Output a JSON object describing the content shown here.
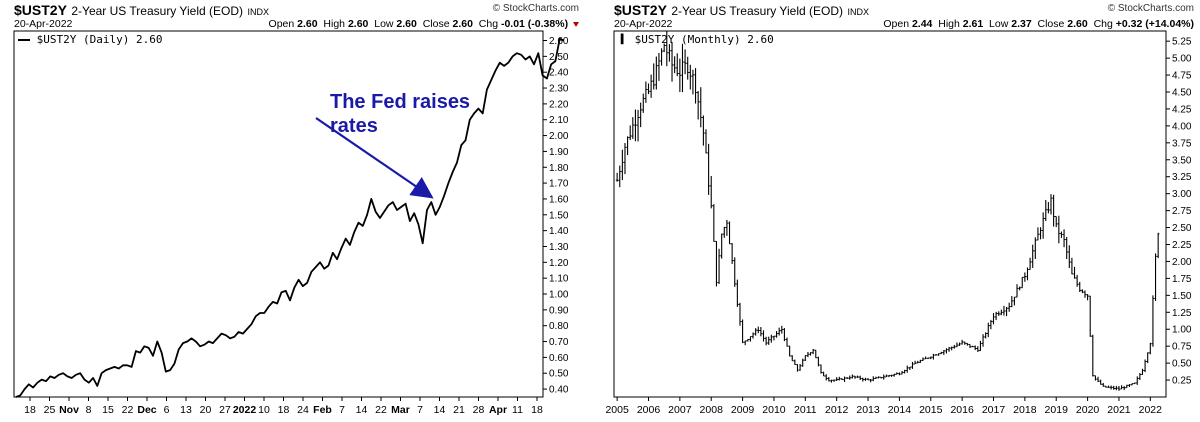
{
  "left": {
    "symbol": "$UST2Y",
    "description": "2-Year US Treasury Yield (EOD)",
    "exchange": "INDX",
    "brand": "© StockCharts.com",
    "date": "20-Apr-2022",
    "ohlc": {
      "open_label": "Open",
      "open": "2.60",
      "high_label": "High",
      "high": "2.60",
      "low_label": "Low",
      "low": "2.60",
      "close_label": "Close",
      "close": "2.60",
      "chg_label": "Chg",
      "chg": "-0.01 (-0.38%)"
    },
    "legend": "$UST2Y (Daily) 2.60",
    "annotation": "The Fed raises rates"
  },
  "right": {
    "symbol": "$UST2Y",
    "description": "2-Year US Treasury Yield (EOD)",
    "exchange": "INDX",
    "brand": "© StockCharts.com",
    "date": "20-Apr-2022",
    "ohlc": {
      "open_label": "Open",
      "open": "2.44",
      "high_label": "High",
      "high": "2.61",
      "low_label": "Low",
      "low": "2.37",
      "close_label": "Close",
      "close": "2.60",
      "chg_label": "Chg",
      "chg": "+0.32 (+14.04%)"
    },
    "legend": "$UST2Y (Monthly) 2.60"
  },
  "chart_data": [
    {
      "type": "line",
      "series": [
        {
          "name": "$UST2Y (Daily)",
          "values": [
            0.35,
            0.36,
            0.4,
            0.43,
            0.41,
            0.44,
            0.46,
            0.45,
            0.48,
            0.47,
            0.49,
            0.5,
            0.48,
            0.47,
            0.49,
            0.5,
            0.46,
            0.44,
            0.47,
            0.42,
            0.5,
            0.52,
            0.53,
            0.54,
            0.53,
            0.55,
            0.55,
            0.54,
            0.64,
            0.63,
            0.67,
            0.66,
            0.61,
            0.7,
            0.63,
            0.51,
            0.52,
            0.56,
            0.65,
            0.69,
            0.7,
            0.72,
            0.7,
            0.67,
            0.68,
            0.7,
            0.69,
            0.72,
            0.75,
            0.74,
            0.72,
            0.73,
            0.76,
            0.75,
            0.78,
            0.81,
            0.86,
            0.88,
            0.88,
            0.92,
            0.95,
            0.94,
            1.01,
            1.02,
            0.96,
            1.04,
            1.09,
            1.05,
            1.07,
            1.14,
            1.17,
            1.2,
            1.16,
            1.18,
            1.26,
            1.22,
            1.29,
            1.35,
            1.31,
            1.39,
            1.45,
            1.43,
            1.5,
            1.6,
            1.52,
            1.48,
            1.52,
            1.56,
            1.58,
            1.53,
            1.55,
            1.57,
            1.46,
            1.51,
            1.44,
            1.32,
            1.53,
            1.58,
            1.5,
            1.55,
            1.62,
            1.7,
            1.77,
            1.83,
            1.94,
            1.97,
            2.1,
            2.14,
            2.17,
            2.14,
            2.29,
            2.35,
            2.41,
            2.46,
            2.44,
            2.46,
            2.5,
            2.52,
            2.51,
            2.48,
            2.5,
            2.45,
            2.52,
            2.38,
            2.36,
            2.45,
            2.47,
            2.61,
            2.6
          ]
        }
      ],
      "x_tick_labels": [
        "18",
        "25",
        "Nov",
        "8",
        "15",
        "22",
        "Dec",
        "6",
        "13",
        "20",
        "27",
        "2022",
        "10",
        "18",
        "24",
        "Feb",
        "7",
        "14",
        "22",
        "Mar",
        "7",
        "14",
        "21",
        "28",
        "Apr",
        "11",
        "18"
      ],
      "y_tick_labels": [
        "0.40",
        "0.50",
        "0.60",
        "0.70",
        "0.80",
        "0.90",
        "1.00",
        "1.10",
        "1.20",
        "1.30",
        "1.40",
        "1.50",
        "1.60",
        "1.70",
        "1.80",
        "1.90",
        "2.00",
        "2.10",
        "2.20",
        "2.30",
        "2.40",
        "2.50",
        "2.60"
      ],
      "ylim": [
        0.35,
        2.66
      ],
      "y_axis_side": "right",
      "grid": false
    },
    {
      "type": "line",
      "series": [
        {
          "name": "$UST2Y (Monthly)",
          "x": [
            2005.0,
            2005.25,
            2005.5,
            2005.75,
            2006.0,
            2006.25,
            2006.5,
            2006.75,
            2007.0,
            2007.25,
            2007.5,
            2007.75,
            2008.0,
            2008.17,
            2008.33,
            2008.5,
            2008.75,
            2009.0,
            2009.25,
            2009.5,
            2009.75,
            2010.0,
            2010.25,
            2010.5,
            2010.75,
            2011.0,
            2011.25,
            2011.5,
            2011.75,
            2012.0,
            2012.5,
            2013.0,
            2013.5,
            2014.0,
            2014.5,
            2015.0,
            2015.5,
            2016.0,
            2016.5,
            2017.0,
            2017.5,
            2018.0,
            2018.5,
            2018.83,
            2019.0,
            2019.25,
            2019.5,
            2019.75,
            2020.0,
            2020.17,
            2020.5,
            2021.0,
            2021.5,
            2021.75,
            2022.0,
            2022.2,
            2022.3
          ],
          "values": [
            3.2,
            3.7,
            4.0,
            4.3,
            4.5,
            4.8,
            5.2,
            4.9,
            4.8,
            4.9,
            4.6,
            3.9,
            2.8,
            1.7,
            2.4,
            2.6,
            1.7,
            0.8,
            0.9,
            1.0,
            0.8,
            0.9,
            1.0,
            0.6,
            0.4,
            0.6,
            0.7,
            0.35,
            0.25,
            0.25,
            0.3,
            0.25,
            0.3,
            0.35,
            0.5,
            0.6,
            0.7,
            0.8,
            0.7,
            1.2,
            1.35,
            1.8,
            2.5,
            2.9,
            2.5,
            2.3,
            1.8,
            1.6,
            1.5,
            0.3,
            0.15,
            0.12,
            0.2,
            0.4,
            0.8,
            2.3,
            2.6
          ]
        }
      ],
      "x_tick_labels": [
        "2005",
        "2006",
        "2007",
        "2008",
        "2009",
        "2010",
        "2011",
        "2012",
        "2013",
        "2014",
        "2015",
        "2016",
        "2017",
        "2018",
        "2019",
        "2020",
        "2021",
        "2022"
      ],
      "y_tick_labels": [
        "0.25",
        "0.50",
        "0.75",
        "1.00",
        "1.25",
        "1.50",
        "1.75",
        "2.00",
        "2.25",
        "2.50",
        "2.75",
        "3.00",
        "3.25",
        "3.50",
        "3.75",
        "4.00",
        "4.25",
        "4.50",
        "4.75",
        "5.00",
        "5.25"
      ],
      "ylim": [
        0.0,
        5.4
      ],
      "xlim": [
        2004.9,
        2022.5
      ],
      "y_axis_side": "right",
      "grid": false
    }
  ]
}
